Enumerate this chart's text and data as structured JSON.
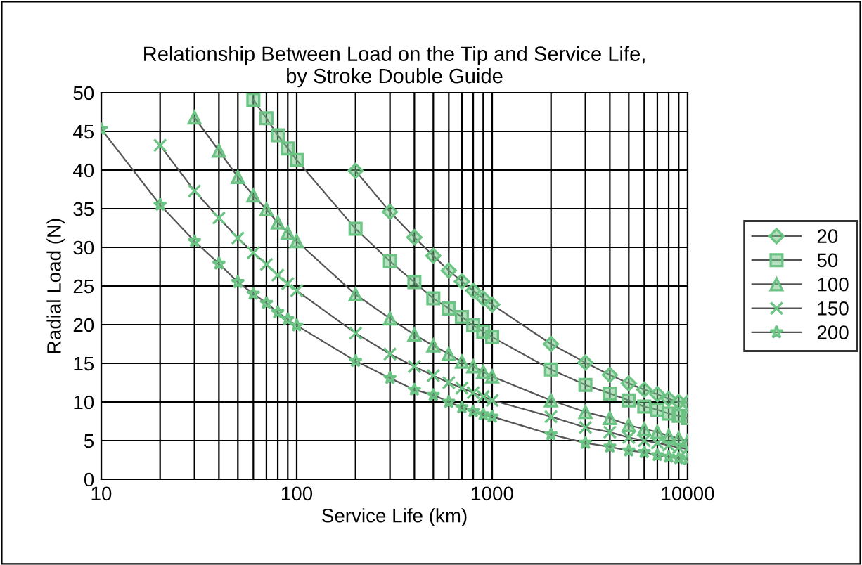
{
  "chart_data": {
    "type": "line",
    "title": "Relationship Between Load on the Tip and Service Life,\nby Stroke Double Guide",
    "xlabel": "Service Life (km)",
    "ylabel": "Radial Load (N)",
    "log": "x",
    "x": [
      10,
      20,
      30,
      40,
      50,
      60,
      70,
      80,
      90,
      100,
      200,
      300,
      400,
      500,
      600,
      700,
      800,
      900,
      1000,
      2000,
      3000,
      4000,
      5000,
      6000,
      7000,
      8000,
      9000,
      10000
    ],
    "xlim": [
      10,
      10000
    ],
    "ylim": [
      0,
      50
    ],
    "xticks": [
      10,
      {
        "value": 20,
        "label": null
      },
      {
        "value": 30,
        "label": null
      },
      {
        "value": 40,
        "label": null
      },
      {
        "value": 50,
        "label": null
      },
      {
        "value": 60,
        "label": null
      },
      {
        "value": 70,
        "label": null
      },
      {
        "value": 80,
        "label": null
      },
      {
        "value": 90,
        "label": null
      },
      100,
      {
        "value": 200,
        "label": null
      },
      {
        "value": 300,
        "label": null
      },
      {
        "value": 400,
        "label": null
      },
      {
        "value": 500,
        "label": null
      },
      {
        "value": 600,
        "label": null
      },
      {
        "value": 700,
        "label": null
      },
      {
        "value": 800,
        "label": null
      },
      {
        "value": 900,
        "label": null
      },
      1000,
      {
        "value": 2000,
        "label": null
      },
      {
        "value": 3000,
        "label": null
      },
      {
        "value": 4000,
        "label": null
      },
      {
        "value": 5000,
        "label": null
      },
      {
        "value": 6000,
        "label": null
      },
      {
        "value": 7000,
        "label": null
      },
      {
        "value": 8000,
        "label": null
      },
      {
        "value": 9000,
        "label": null
      },
      10000
    ],
    "yticks": [
      0,
      5,
      10,
      15,
      20,
      25,
      30,
      35,
      40,
      45,
      50
    ],
    "grid": true,
    "legend": "right",
    "series": [
      {
        "name": "20",
        "color": "#6cc484",
        "marker": "diamond",
        "values": [
          null,
          null,
          null,
          null,
          null,
          null,
          null,
          null,
          null,
          null,
          39.9,
          34.6,
          31.3,
          28.9,
          27.0,
          25.6,
          24.4,
          23.4,
          22.6,
          17.5,
          15.1,
          13.5,
          12.4,
          11.6,
          11.0,
          10.4,
          10.0,
          9.9
        ]
      },
      {
        "name": "50",
        "color": "#6cc484",
        "marker": "square",
        "values": [
          null,
          null,
          null,
          null,
          null,
          49.1,
          46.7,
          44.5,
          42.8,
          41.3,
          32.4,
          28.2,
          25.5,
          23.4,
          22.1,
          21.0,
          19.9,
          19.1,
          18.4,
          14.2,
          12.2,
          11.1,
          10.2,
          9.4,
          9.0,
          8.5,
          8.2,
          7.9
        ]
      },
      {
        "name": "100",
        "color": "#6cc484",
        "marker": "triangle",
        "values": [
          null,
          null,
          46.8,
          42.5,
          39.1,
          36.7,
          34.9,
          33.2,
          31.9,
          30.8,
          23.9,
          20.8,
          18.7,
          17.3,
          16.2,
          15.2,
          14.6,
          13.9,
          13.3,
          10.2,
          8.7,
          7.9,
          7.0,
          6.5,
          6.1,
          5.6,
          5.3,
          4.9
        ]
      },
      {
        "name": "150",
        "color": "#6cc484",
        "marker": "cross",
        "values": [
          null,
          43.2,
          37.3,
          33.8,
          31.2,
          29.3,
          27.8,
          26.4,
          25.3,
          24.4,
          18.9,
          16.2,
          14.6,
          13.4,
          12.5,
          11.8,
          11.2,
          10.7,
          10.2,
          8.1,
          6.7,
          6.1,
          5.4,
          5.0,
          4.7,
          4.4,
          4.1,
          3.9
        ]
      },
      {
        "name": "200",
        "color": "#6cc484",
        "marker": "star",
        "values": [
          45.3,
          35.5,
          30.8,
          27.9,
          25.5,
          24.0,
          22.8,
          21.6,
          20.7,
          19.9,
          15.3,
          13.1,
          11.6,
          10.9,
          10.0,
          9.3,
          8.8,
          8.4,
          8.1,
          5.8,
          4.7,
          4.2,
          3.7,
          3.5,
          3.1,
          2.9,
          2.7,
          2.6
        ]
      }
    ]
  }
}
